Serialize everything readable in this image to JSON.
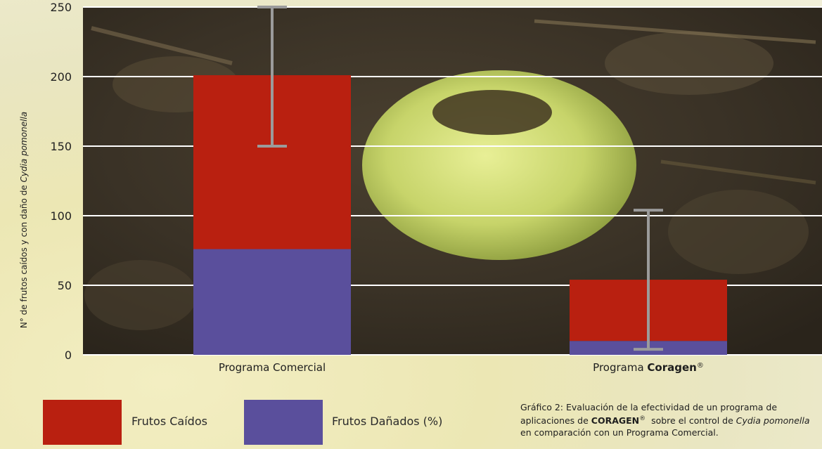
{
  "chart_data": {
    "type": "bar",
    "stacked": true,
    "categories": [
      "Programa Comercial",
      "Programa Coragen®"
    ],
    "category_labels": [
      {
        "text": "Programa Comercial"
      },
      {
        "prefix": "Programa ",
        "bold": "Coragen",
        "suffix": "®"
      }
    ],
    "series": [
      {
        "name": "Frutos Dañados (%)",
        "values": [
          76,
          10
        ],
        "color": "#5a4f9c"
      },
      {
        "name": "Frutos Caídos",
        "values": [
          125,
          44
        ],
        "color": "#b92010"
      }
    ],
    "error_bars": [
      {
        "low": 150,
        "high": 250
      },
      {
        "low": 4,
        "high": 104
      }
    ],
    "error_bar_color": "#9b9b9b",
    "ylabel_parts": {
      "normal": "N° de frutos caídos y con daño de ",
      "italic": "Cydia pomonella"
    },
    "ylim": [
      0,
      250
    ],
    "yticks": [
      0,
      50,
      100,
      150,
      200,
      250
    ],
    "grid": true,
    "legend_position": "bottom-left"
  },
  "legend": [
    {
      "label": "Frutos Caídos",
      "color": "#b92010"
    },
    {
      "label": "Frutos Dañados (%)",
      "color": "#5a4f9c"
    }
  ],
  "caption": {
    "line1": "Gráfico 2: Evaluación de la efectividad de un programa de",
    "line2_prefix": "aplicaciones de ",
    "line2_bold": "CORAGEN",
    "line2_reg": "®",
    "line2_middle": "  sobre el control de ",
    "line2_italic": "Cydia pomonella",
    "line3": "en comparación con un Programa Comercial."
  }
}
